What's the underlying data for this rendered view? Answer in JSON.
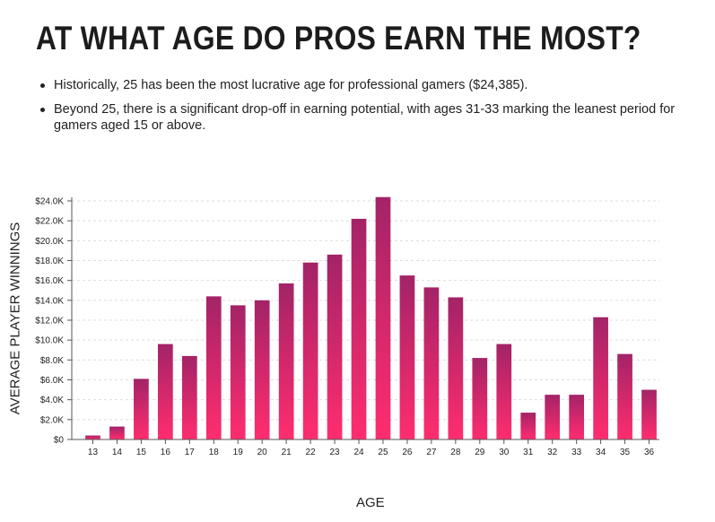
{
  "heading": "AT WHAT AGE DO PROS EARN THE MOST?",
  "bullets": [
    "Historically, 25 has been the most lucrative age for professional gamers ($24,385).",
    "Beyond 25, there is a significant drop-off in earning potential, with ages 31-33 marking the leanest period for gamers aged 15 or above."
  ],
  "colors": {
    "bar_top": "#a32367",
    "bar_bottom": "#ff2d6f",
    "grid": "#dddddd",
    "axis": "#555555"
  },
  "chart_data": {
    "type": "bar",
    "xlabel": "AGE",
    "ylabel": "AVERAGE PLAYER WINNINGS",
    "categories": [
      "13",
      "14",
      "15",
      "16",
      "17",
      "18",
      "19",
      "20",
      "21",
      "22",
      "23",
      "24",
      "25",
      "26",
      "27",
      "28",
      "29",
      "30",
      "31",
      "32",
      "33",
      "34",
      "35",
      "36"
    ],
    "values": [
      400,
      1300,
      6100,
      9600,
      8400,
      14400,
      13500,
      14000,
      15700,
      17800,
      18600,
      22200,
      24385,
      16500,
      15300,
      14300,
      8200,
      9600,
      2700,
      4500,
      4500,
      12300,
      8600,
      5000
    ],
    "yticks": [
      "$0",
      "$2.0K",
      "$4.0K",
      "$6.0K",
      "$8.0K",
      "$10.0K",
      "$12.0K",
      "$14.0K",
      "$16.0K",
      "$18.0K",
      "$20.0K",
      "$22.0K",
      "$24.0K"
    ],
    "ylim": [
      0,
      24000
    ],
    "grid": true
  }
}
